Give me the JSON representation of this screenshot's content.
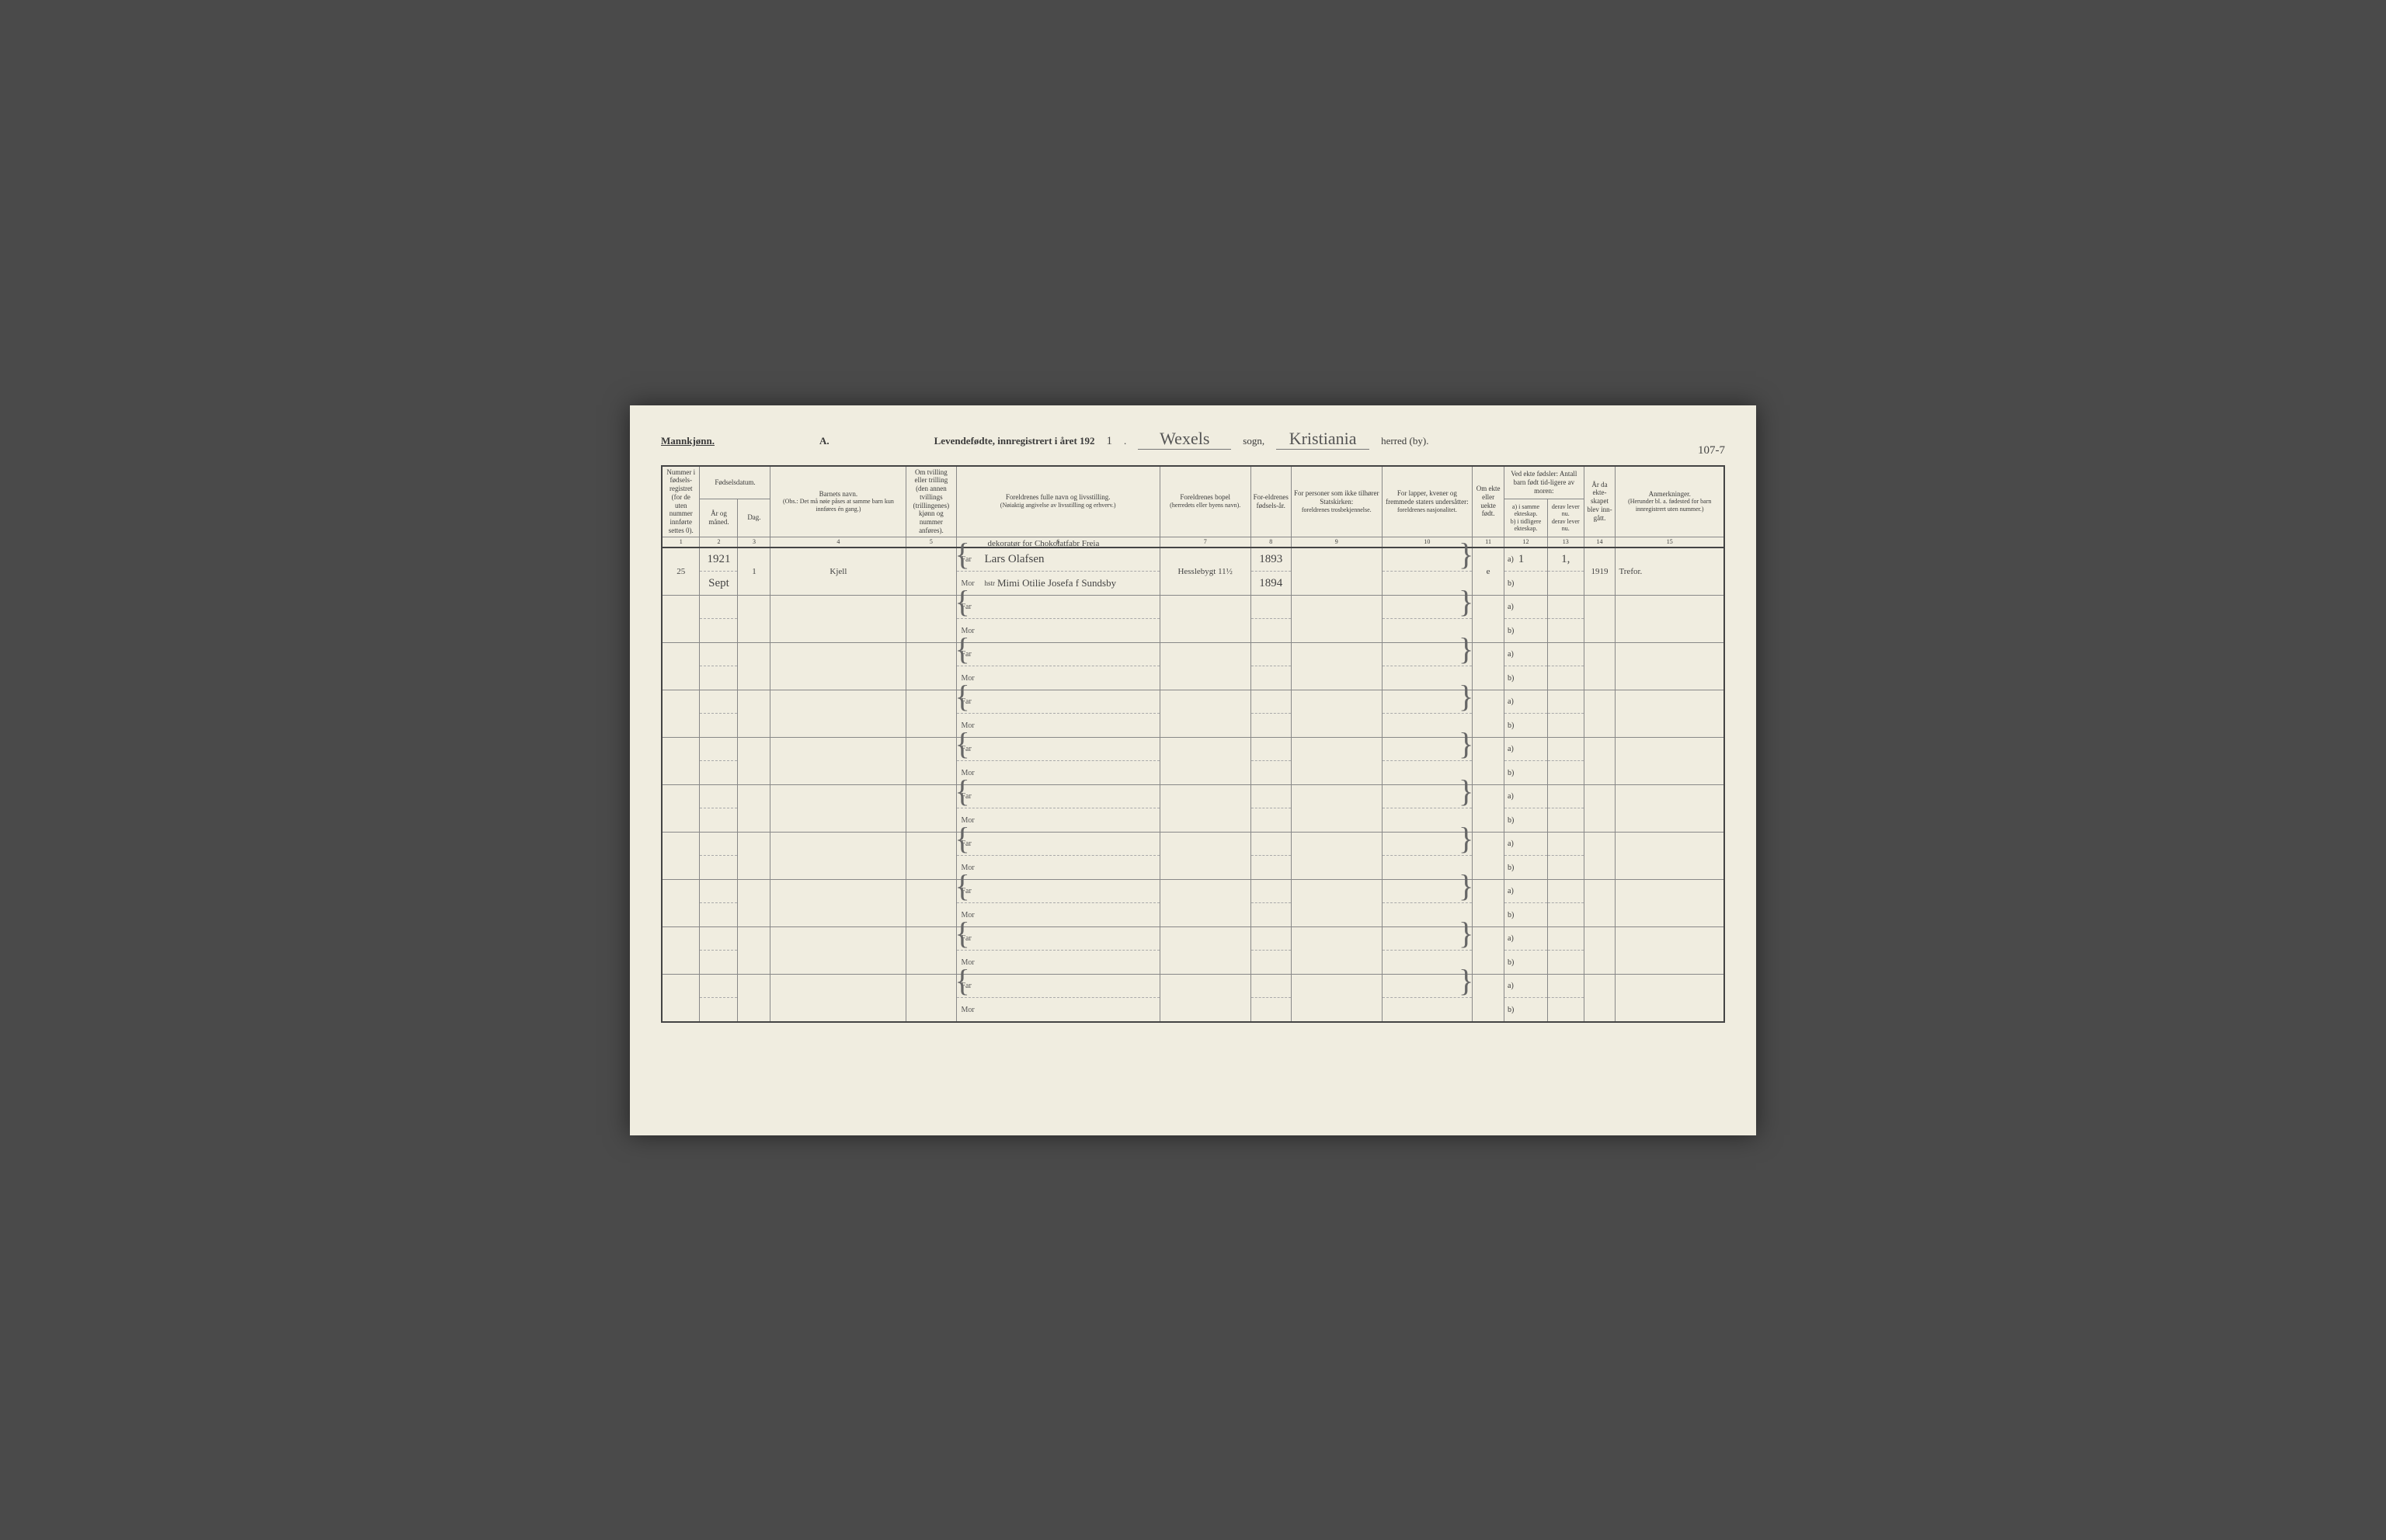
{
  "header": {
    "gender": "Mannkjønn.",
    "title_a": "A.",
    "title_main": "Levendefødte, innregistrert i året 192",
    "year_suffix": "1",
    "sogn_value": "Wexels",
    "sogn_label": "sogn,",
    "herred_value": "Kristiania",
    "herred_label": "herred (by).",
    "page_number": "107-7"
  },
  "columns": {
    "c1": "Nummer i fødsels-registret (for de uten nummer innførte settes 0).",
    "c2_top": "Fødselsdatum.",
    "c2a": "År og måned.",
    "c2b": "Dag.",
    "c4_top": "Barnets navn.",
    "c4_sub": "(Obs.: Det må nøie påses at samme barn kun innføres én gang.)",
    "c5": "Om tvilling eller trilling (den annen tvillings (trillingenes) kjønn og nummer anføres).",
    "c6_top": "Foreldrenes fulle navn og livsstilling.",
    "c6_sub": "(Nøiaktig angivelse av livsstilling og erhverv.)",
    "c7_top": "Foreldrenes bopel",
    "c7_sub": "(herredets eller byens navn).",
    "c8": "For-eldrenes fødsels-år.",
    "c9_top": "For personer som ikke tilhører Statskirken:",
    "c9_sub": "foreldrenes trosbekjennelse.",
    "c10_top": "For lapper, kvener og fremmede staters undersåtter:",
    "c10_sub": "foreldrenes nasjonalitet.",
    "c11": "Om ekte eller uekte født.",
    "c12_top": "Ved ekte fødsler: Antall barn født tid-ligere av moren:",
    "c12a": "a) i samme ekteskap.",
    "c12b": "b) i tidligere ekteskap.",
    "c13a": "derav lever nu.",
    "c13b": "derav lever nu.",
    "c14": "År da ekte-skapet blev inn-gått.",
    "c15_top": "Anmerkninger.",
    "c15_sub": "(Herunder bl. a. fødested for barn innregistrert uten nummer.)"
  },
  "col_nums": [
    "1",
    "2",
    "3",
    "4",
    "5",
    "6",
    "7",
    "8",
    "9",
    "10",
    "11",
    "12",
    "13",
    "14",
    "15"
  ],
  "parent_labels": {
    "far": "Far",
    "mor": "Mor",
    "hstr": "hstr"
  },
  "ab_labels": {
    "a": "a)",
    "b": "b)"
  },
  "rows": [
    {
      "num": "25",
      "year": "1921",
      "month": "Sept",
      "day": "1",
      "child": "Kjell",
      "twin": "",
      "far_occ": "dekoratør for Chokolatfabr Freia",
      "far": "Lars Olafsen",
      "mor": "Mimi Otilie Josefa f Sundsby",
      "bopel": "Hesslebygt 11½",
      "far_year": "1893",
      "mor_year": "1894",
      "religion": "",
      "nationality": "",
      "ekte": "e",
      "c12a": "1",
      "c12b": "",
      "c13a": "1,",
      "c13b": "",
      "marriage_year": "1919",
      "remarks": "Trefor."
    },
    {},
    {},
    {},
    {},
    {},
    {},
    {},
    {},
    {}
  ]
}
